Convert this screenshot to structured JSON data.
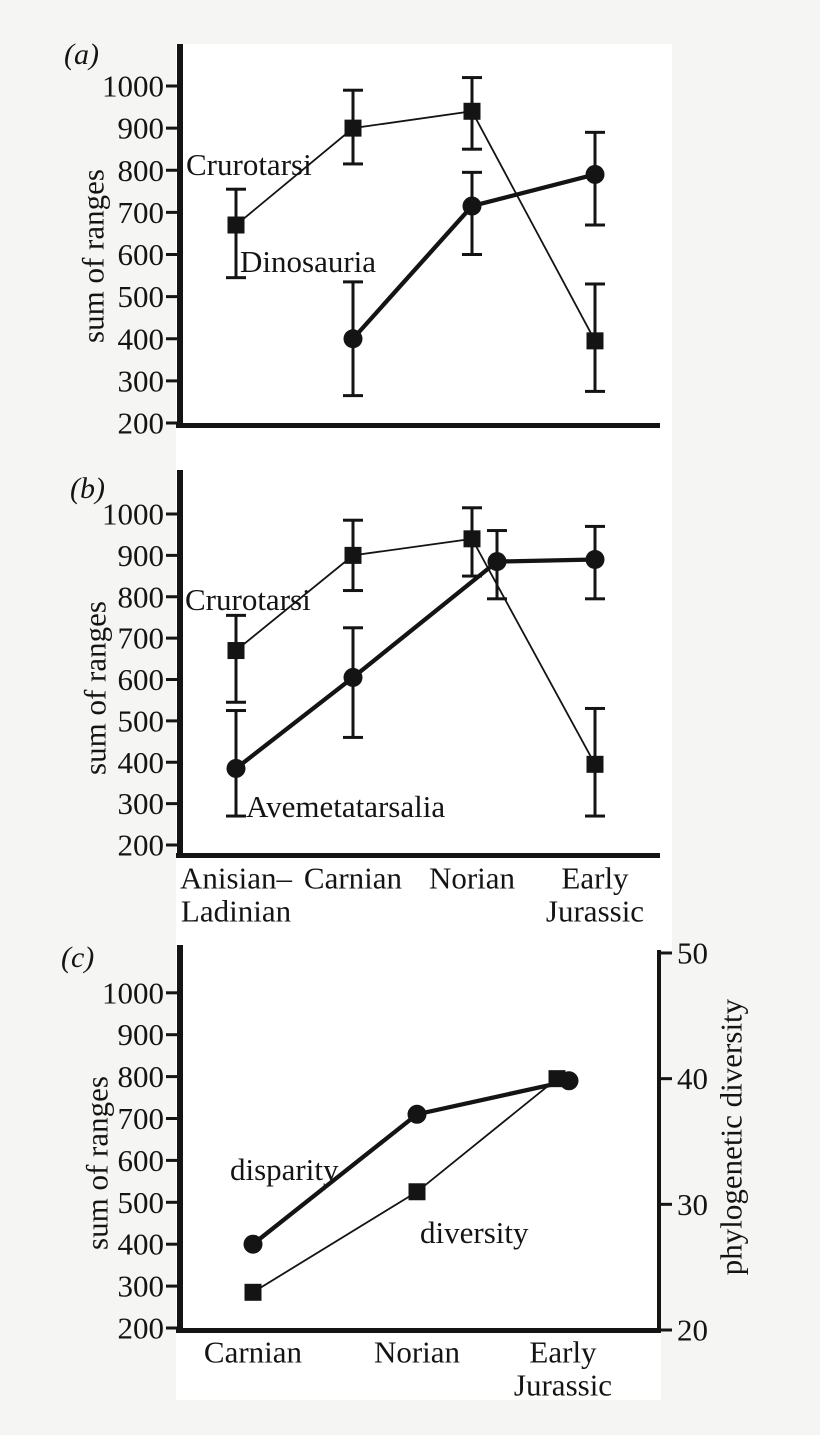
{
  "figure": {
    "background_color": "#f5f5f4",
    "plot_background": "#ffffff",
    "ink_color": "#141414"
  },
  "chart_data": [
    {
      "panel": "a",
      "panel_label": "(a)",
      "type": "line",
      "categories": [
        "Anisian–Ladinian",
        "Carnian",
        "Norian",
        "Early Jurassic"
      ],
      "category_label_lines": [
        [
          "Anisian–",
          "Ladinian"
        ],
        [
          "Carnian"
        ],
        [
          "Norian"
        ],
        [
          "Early",
          "Jurassic"
        ]
      ],
      "show_x_labels": false,
      "ylabel": "sum of ranges",
      "ylim": [
        200,
        1050
      ],
      "yticks": [
        1000,
        900,
        800,
        700,
        600,
        500,
        400,
        300,
        200
      ],
      "grid": false,
      "legend_position": "inline-annotations",
      "series": [
        {
          "name": "Crurotarsi",
          "marker": "square",
          "line_weight": "thin",
          "axis": "left",
          "values": [
            670,
            900,
            940,
            395
          ],
          "err_low": [
            545,
            815,
            850,
            275
          ],
          "err_high": [
            755,
            990,
            1020,
            530
          ]
        },
        {
          "name": "Dinosauria",
          "marker": "circle",
          "line_weight": "thick",
          "axis": "left",
          "values": [
            null,
            400,
            715,
            790
          ],
          "err_low": [
            null,
            265,
            600,
            670
          ],
          "err_high": [
            null,
            535,
            795,
            890
          ]
        }
      ],
      "annotations": [
        "Crurotarsi",
        "Dinosauria"
      ]
    },
    {
      "panel": "b",
      "panel_label": "(b)",
      "type": "line",
      "categories": [
        "Anisian–Ladinian",
        "Carnian",
        "Norian",
        "Early Jurassic"
      ],
      "category_label_lines": [
        [
          "Anisian–",
          "Ladinian"
        ],
        [
          "Carnian"
        ],
        [
          "Norian"
        ],
        [
          "Early",
          "Jurassic"
        ]
      ],
      "show_x_labels": true,
      "ylabel": "sum of ranges",
      "ylim": [
        200,
        1050
      ],
      "yticks": [
        1000,
        900,
        800,
        700,
        600,
        500,
        400,
        300,
        200
      ],
      "grid": false,
      "legend_position": "inline-annotations",
      "series": [
        {
          "name": "Crurotarsi",
          "marker": "square",
          "line_weight": "thin",
          "axis": "left",
          "values": [
            670,
            900,
            940,
            395
          ],
          "err_low": [
            545,
            815,
            850,
            270
          ],
          "err_high": [
            755,
            985,
            1015,
            530
          ]
        },
        {
          "name": "Avemetatarsalia",
          "marker": "circle",
          "line_weight": "thick",
          "axis": "left",
          "values": [
            385,
            605,
            885,
            890
          ],
          "err_low": [
            270,
            460,
            795,
            795
          ],
          "err_high": [
            525,
            725,
            960,
            970
          ]
        }
      ],
      "annotations": [
        "Crurotarsi",
        "Avemetatarsalia"
      ]
    },
    {
      "panel": "c",
      "panel_label": "(c)",
      "type": "line",
      "categories": [
        "Carnian",
        "Norian",
        "Early Jurassic"
      ],
      "category_label_lines": [
        [
          "Carnian"
        ],
        [
          "Norian"
        ],
        [
          "Early",
          "Jurassic"
        ]
      ],
      "show_x_labels": true,
      "ylabel": "sum of ranges",
      "ylim": [
        200,
        1050
      ],
      "yticks": [
        1000,
        900,
        800,
        700,
        600,
        500,
        400,
        300,
        200
      ],
      "y2label": "phylogenetic diversity",
      "y2lim": [
        20,
        50
      ],
      "y2ticks": [
        50,
        40,
        30,
        20
      ],
      "grid": false,
      "legend_position": "inline-annotations",
      "series": [
        {
          "name": "disparity",
          "marker": "circle",
          "line_weight": "thick",
          "axis": "left",
          "values": [
            400,
            710,
            790
          ]
        },
        {
          "name": "diversity",
          "marker": "square",
          "line_weight": "thin",
          "axis": "right",
          "values": [
            23,
            31,
            40
          ]
        }
      ],
      "annotations": [
        "disparity",
        "diversity"
      ]
    }
  ]
}
